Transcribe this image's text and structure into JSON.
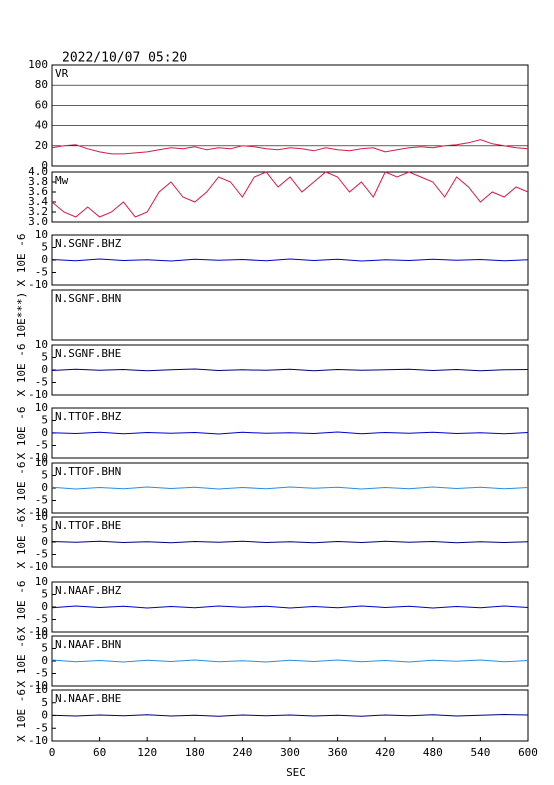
{
  "chart_data": [
    {
      "type": "line",
      "title": "2022/10/07 05:20",
      "label": "VR",
      "xlim": [
        0,
        600
      ],
      "ylim": [
        0,
        100
      ],
      "yticks": [
        0,
        20,
        40,
        60,
        80,
        100
      ],
      "grid": true,
      "x": [
        0,
        15,
        30,
        45,
        60,
        75,
        90,
        105,
        120,
        135,
        150,
        165,
        180,
        195,
        210,
        225,
        240,
        255,
        270,
        285,
        300,
        315,
        330,
        345,
        360,
        375,
        390,
        405,
        420,
        435,
        450,
        465,
        480,
        495,
        510,
        525,
        540,
        555,
        570,
        585,
        600
      ],
      "series": [
        {
          "color": "#d41c48",
          "values": [
            18,
            20,
            21,
            17,
            14,
            12,
            12,
            13,
            14,
            16,
            18,
            17,
            19,
            16,
            18,
            17,
            20,
            19,
            17,
            16,
            18,
            17,
            15,
            18,
            16,
            15,
            17,
            18,
            14,
            16,
            18,
            19,
            18,
            20,
            21,
            23,
            26,
            22,
            20,
            18,
            17
          ]
        }
      ]
    },
    {
      "type": "line",
      "label": "Mw",
      "xlim": [
        0,
        600
      ],
      "ylim": [
        3,
        4
      ],
      "yticks": [
        {
          "value": 3,
          "label": "3.0"
        },
        3.2,
        3.4,
        3.6,
        3.8,
        {
          "value": 4,
          "label": "4.0"
        }
      ],
      "x": [
        0,
        15,
        30,
        45,
        60,
        75,
        90,
        105,
        120,
        135,
        150,
        165,
        180,
        195,
        210,
        225,
        240,
        255,
        270,
        285,
        300,
        315,
        330,
        345,
        360,
        375,
        390,
        405,
        420,
        435,
        450,
        465,
        480,
        495,
        510,
        525,
        540,
        555,
        570,
        585,
        600
      ],
      "series": [
        {
          "color": "#d41c48",
          "values": [
            3.4,
            3.2,
            3.1,
            3.3,
            3.1,
            3.2,
            3.4,
            3.1,
            3.2,
            3.6,
            3.8,
            3.5,
            3.4,
            3.6,
            3.9,
            3.8,
            3.5,
            3.9,
            4.0,
            3.7,
            3.9,
            3.6,
            3.8,
            4.0,
            3.9,
            3.6,
            3.8,
            3.5,
            4.0,
            3.9,
            4.0,
            3.9,
            3.8,
            3.5,
            3.9,
            3.7,
            3.4,
            3.6,
            3.5,
            3.7,
            3.6
          ]
        }
      ]
    },
    {
      "type": "line",
      "label": "N.SGNF.BHZ",
      "ylabel": "X 10E -6",
      "xlim": [
        0,
        600
      ],
      "ylim": [
        -10,
        10
      ],
      "yticks": [
        -10,
        -5,
        0,
        5,
        10
      ],
      "x": [
        0,
        30,
        60,
        90,
        120,
        150,
        180,
        210,
        240,
        270,
        300,
        330,
        360,
        390,
        420,
        450,
        480,
        510,
        540,
        570,
        600
      ],
      "series": [
        {
          "color": "#0000c8",
          "values": [
            0.2,
            -0.3,
            0.4,
            -0.2,
            0.1,
            -0.4,
            0.3,
            -0.1,
            0.2,
            -0.3,
            0.4,
            -0.2,
            0.3,
            -0.4,
            0.1,
            -0.2,
            0.3,
            -0.1,
            0.2,
            -0.3,
            0.1
          ]
        }
      ]
    },
    {
      "type": "line",
      "label": "N.SGNF.BHN",
      "ylabel": "10E***)",
      "xlim": [
        0,
        600
      ]
    },
    {
      "type": "line",
      "label": "N.SGNF.BHE",
      "ylabel": "X 10E -6",
      "xlim": [
        0,
        600
      ],
      "ylim": [
        -10,
        10
      ],
      "yticks": [
        -10,
        -5,
        0,
        5,
        10
      ],
      "x": [
        0,
        30,
        60,
        90,
        120,
        150,
        180,
        210,
        240,
        270,
        300,
        330,
        360,
        390,
        420,
        450,
        480,
        510,
        540,
        570,
        600
      ],
      "series": [
        {
          "color": "#000080",
          "values": [
            -0.2,
            0.3,
            -0.1,
            0.2,
            -0.3,
            0.1,
            0.4,
            -0.2,
            0.1,
            -0.1,
            0.3,
            -0.3,
            0.2,
            -0.1,
            0.1,
            0.3,
            -0.2,
            0.2,
            -0.3,
            0.1,
            0.2
          ]
        }
      ]
    },
    {
      "type": "line",
      "label": "N.TTOF.BHZ",
      "ylabel": "X 10E -6",
      "xlim": [
        0,
        600
      ],
      "ylim": [
        -10,
        10
      ],
      "yticks": [
        -10,
        -5,
        0,
        5,
        10
      ],
      "x": [
        0,
        30,
        60,
        90,
        120,
        150,
        180,
        210,
        240,
        270,
        300,
        330,
        360,
        390,
        420,
        450,
        480,
        510,
        540,
        570,
        600
      ],
      "series": [
        {
          "color": "#0000c8",
          "values": [
            0.1,
            -0.2,
            0.3,
            -0.3,
            0.2,
            -0.1,
            0.2,
            -0.4,
            0.3,
            -0.1,
            0.1,
            -0.2,
            0.4,
            -0.3,
            0.2,
            -0.1,
            0.3,
            -0.2,
            0.1,
            -0.3,
            0.2
          ]
        }
      ]
    },
    {
      "type": "line",
      "label": "N.TTOF.BHN",
      "ylabel": "X 10E -6",
      "xlim": [
        0,
        600
      ],
      "ylim": [
        -10,
        10
      ],
      "yticks": [
        -10,
        -5,
        0,
        5,
        10
      ],
      "x": [
        0,
        30,
        60,
        90,
        120,
        150,
        180,
        210,
        240,
        270,
        300,
        330,
        360,
        390,
        420,
        450,
        480,
        510,
        540,
        570,
        600
      ],
      "series": [
        {
          "color": "#2a8ee0",
          "values": [
            0.3,
            -0.4,
            0.2,
            -0.3,
            0.4,
            -0.2,
            0.3,
            -0.4,
            0.2,
            -0.3,
            0.4,
            -0.1,
            0.3,
            -0.4,
            0.2,
            -0.3,
            0.4,
            -0.2,
            0.3,
            -0.3,
            0.2
          ]
        }
      ]
    },
    {
      "type": "line",
      "label": "N.TTOF.BHE",
      "ylabel": "X 10E -6",
      "xlim": [
        0,
        600
      ],
      "ylim": [
        -10,
        10
      ],
      "yticks": [
        -10,
        -5,
        0,
        5,
        10
      ],
      "x": [
        0,
        30,
        60,
        90,
        120,
        150,
        180,
        210,
        240,
        270,
        300,
        330,
        360,
        390,
        420,
        450,
        480,
        510,
        540,
        570,
        600
      ],
      "series": [
        {
          "color": "#000080",
          "values": [
            0.2,
            -0.1,
            0.3,
            -0.2,
            0.1,
            -0.3,
            0.2,
            -0.1,
            0.3,
            -0.2,
            0.1,
            -0.3,
            0.2,
            -0.2,
            0.3,
            -0.1,
            0.2,
            -0.3,
            0.1,
            -0.2,
            0.1
          ]
        }
      ]
    },
    {
      "type": "line",
      "label": "N.NAAF.BHZ",
      "ylabel": "X 10E -6",
      "xlim": [
        0,
        600
      ],
      "ylim": [
        -10,
        10
      ],
      "yticks": [
        -10,
        -5,
        0,
        5,
        10
      ],
      "x": [
        0,
        30,
        60,
        90,
        120,
        150,
        180,
        210,
        240,
        270,
        300,
        330,
        360,
        390,
        420,
        450,
        480,
        510,
        540,
        570,
        600
      ],
      "series": [
        {
          "color": "#0000c8",
          "values": [
            -0.3,
            0.4,
            -0.2,
            0.3,
            -0.4,
            0.2,
            -0.3,
            0.4,
            -0.1,
            0.3,
            -0.4,
            0.2,
            -0.3,
            0.4,
            -0.2,
            0.3,
            -0.4,
            0.2,
            -0.3,
            0.4,
            -0.2
          ]
        }
      ]
    },
    {
      "type": "line",
      "label": "N.NAAF.BHN",
      "ylabel": "X 10E -6",
      "xlim": [
        0,
        600
      ],
      "ylim": [
        -10,
        10
      ],
      "yticks": [
        -10,
        -5,
        0,
        5,
        10
      ],
      "x": [
        0,
        30,
        60,
        90,
        120,
        150,
        180,
        210,
        240,
        270,
        300,
        330,
        360,
        390,
        420,
        450,
        480,
        510,
        540,
        570,
        600
      ],
      "series": [
        {
          "color": "#2a8ee0",
          "values": [
            0.4,
            -0.3,
            0.2,
            -0.4,
            0.3,
            -0.2,
            0.4,
            -0.3,
            0.1,
            -0.4,
            0.3,
            -0.2,
            0.4,
            -0.3,
            0.2,
            -0.4,
            0.3,
            -0.1,
            0.4,
            -0.3,
            0.2
          ]
        }
      ]
    },
    {
      "type": "line",
      "label": "N.NAAF.BHE",
      "ylabel": "X 10E -6",
      "xlabel": "SEC",
      "xlim": [
        0,
        600
      ],
      "ylim": [
        -10,
        10
      ],
      "yticks": [
        -10,
        -5,
        0,
        5,
        10
      ],
      "xticks": [
        0,
        60,
        120,
        180,
        240,
        300,
        360,
        420,
        480,
        540,
        600
      ],
      "x": [
        0,
        30,
        60,
        90,
        120,
        150,
        180,
        210,
        240,
        270,
        300,
        330,
        360,
        390,
        420,
        450,
        480,
        510,
        540,
        570,
        600
      ],
      "series": [
        {
          "color": "#000080",
          "values": [
            0.1,
            -0.2,
            0.2,
            -0.1,
            0.3,
            -0.2,
            0.1,
            -0.3,
            0.2,
            -0.1,
            0.2,
            -0.2,
            0.1,
            -0.3,
            0.2,
            -0.1,
            0.3,
            -0.2,
            0.1,
            0.4,
            0.2
          ]
        }
      ]
    }
  ]
}
